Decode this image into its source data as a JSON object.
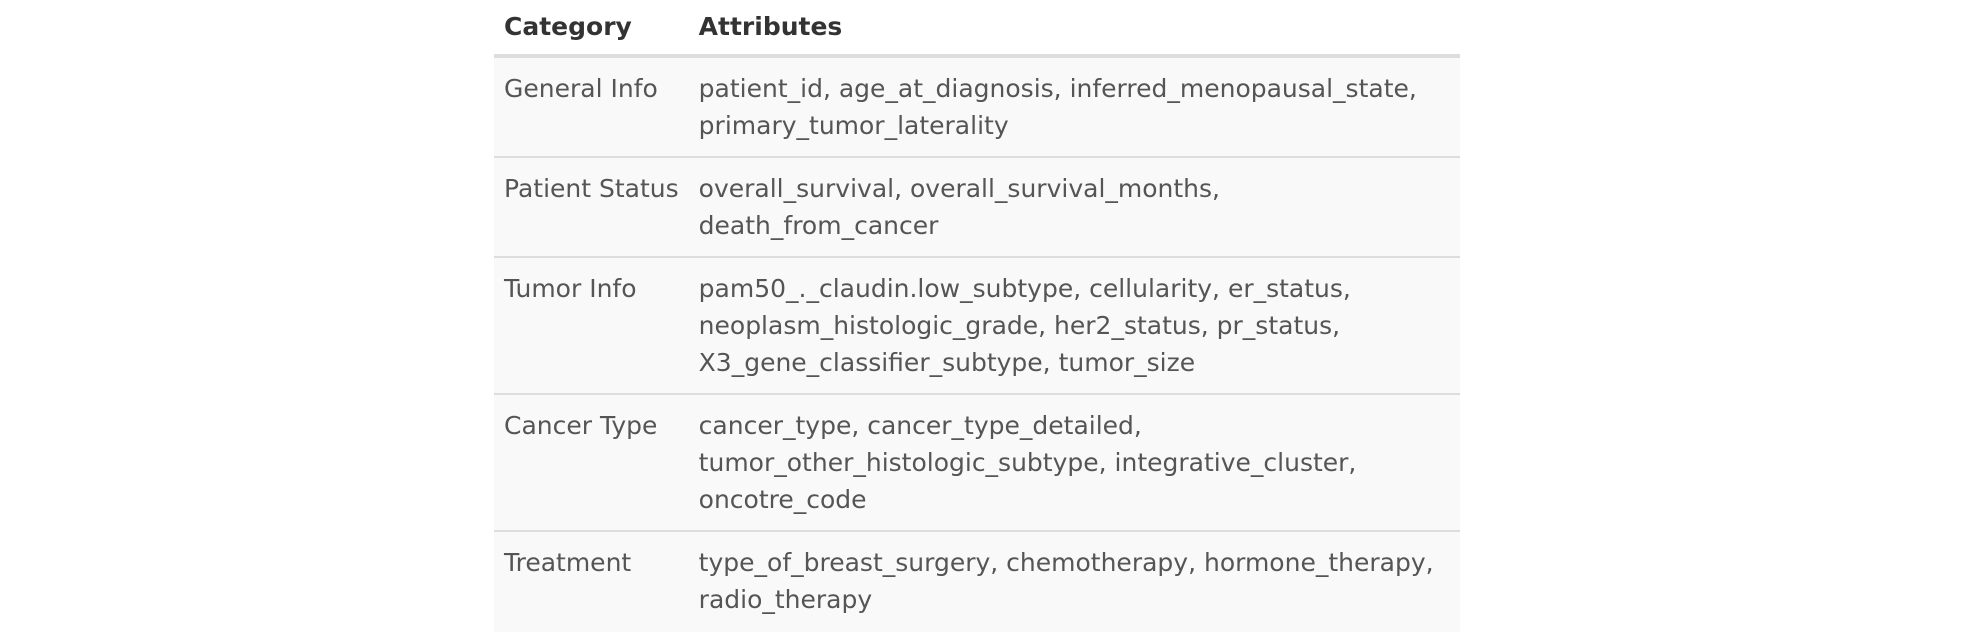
{
  "table": {
    "headers": {
      "category": "Category",
      "attributes": "Attributes"
    },
    "rows": [
      {
        "category": "General Info",
        "attributes": "patient_id, age_at_diagnosis, inferred_menopausal_state, primary_tumor_laterality"
      },
      {
        "category": "Patient Status",
        "attributes": "overall_survival, overall_survival_months, death_from_cancer"
      },
      {
        "category": "Tumor Info",
        "attributes": "pam50_._claudin.low_subtype, cellularity, er_status, neoplasm_histologic_grade, her2_status, pr_status, X3_gene_classifier_subtype, tumor_size"
      },
      {
        "category": "Cancer Type",
        "attributes": "cancer_type, cancer_type_detailed, tumor_other_histologic_subtype, integrative_cluster, oncotre_code"
      },
      {
        "category": "Treatment",
        "attributes": "type_of_breast_surgery, chemotherapy, hormone_therapy, radio_therapy"
      }
    ]
  },
  "colors": {
    "header_text": "#333333",
    "body_text": "#555555",
    "row_background": "#f9f9f9",
    "rule": "#dddddd"
  }
}
